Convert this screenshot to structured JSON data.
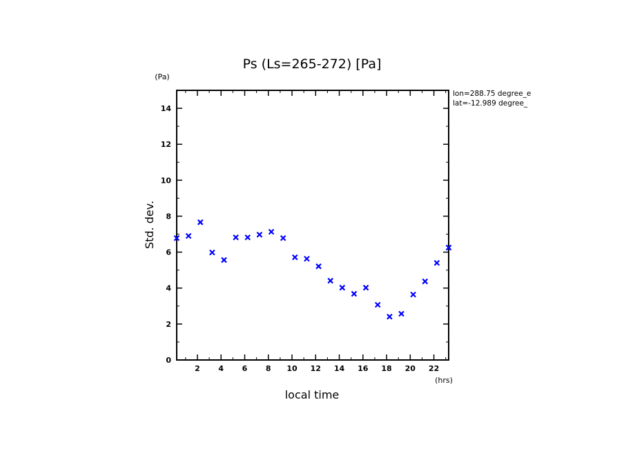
{
  "chart_data": {
    "type": "scatter",
    "title": "Ps (Ls=265-272) [Pa]",
    "xlabel": "local time",
    "ylabel": "Std. dev.",
    "x_unit": "(hrs)",
    "y_unit": "(Pa)",
    "xlim": [
      0.25,
      23.25
    ],
    "ylim": [
      0,
      15
    ],
    "xticks": [
      2,
      4,
      6,
      8,
      10,
      12,
      14,
      16,
      18,
      20,
      22
    ],
    "yticks": [
      0,
      2,
      4,
      6,
      8,
      10,
      12,
      14
    ],
    "grid": false,
    "marker": "x",
    "marker_color": "#0000ff",
    "annotations": [
      "lon=288.75 degree_e",
      "lat=-12.989 degree_"
    ],
    "x": [
      0.25,
      1.25,
      2.25,
      3.25,
      4.25,
      5.25,
      6.25,
      7.25,
      8.25,
      9.25,
      10.25,
      11.25,
      12.25,
      13.25,
      14.25,
      15.25,
      16.25,
      17.25,
      18.25,
      19.25,
      20.25,
      21.25,
      22.25,
      23.25
    ],
    "values": [
      6.78,
      6.9,
      7.66,
      5.98,
      5.56,
      6.82,
      6.82,
      6.97,
      7.13,
      6.78,
      5.71,
      5.63,
      5.21,
      4.41,
      4.02,
      3.68,
      4.02,
      3.07,
      2.41,
      2.57,
      3.64,
      4.37,
      5.4,
      6.25
    ]
  }
}
